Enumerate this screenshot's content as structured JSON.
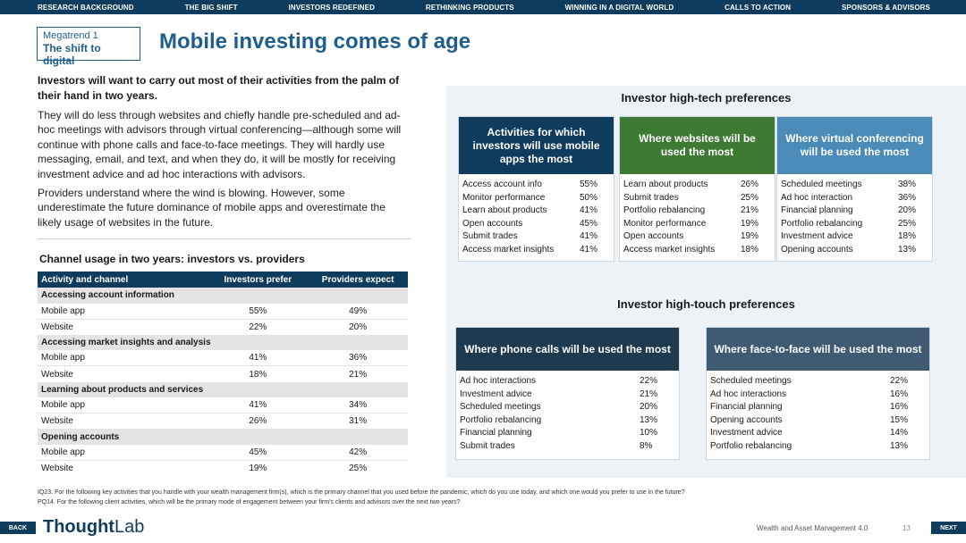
{
  "nav": [
    "RESEARCH BACKGROUND",
    "THE BIG SHIFT",
    "INVESTORS REDEFINED",
    "RETHINKING PRODUCTS",
    "WINNING IN A DIGITAL WORLD",
    "CALLS TO ACTION",
    "SPONSORS & ADVISORS"
  ],
  "megatrend": {
    "label": "Megatrend 1",
    "name": "The shift to digital"
  },
  "title": "Mobile investing comes of age",
  "intro_bold": "Investors will want to carry out most of their activities from the palm of their hand in two years.",
  "paragraph1": "They will do less through websites and chiefly handle pre-scheduled and ad-hoc meetings with advisors through virtual conferencing—although some will continue with phone calls and face-to-face meetings. They will hardly use messaging, email, and text, and when they do, it will be mostly for receiving investment advice and ad hoc interactions with advisors.",
  "paragraph2": "Providers understand where the wind is blowing. However, some underestimate the future dominance of mobile apps and overestimate the likely usage of websites in the future.",
  "channel_table": {
    "title": "Channel usage in two years: investors vs. providers",
    "headers": [
      "Activity and channel",
      "Investors prefer",
      "Providers expect"
    ],
    "sections": [
      {
        "name": "Accessing account information",
        "rows": [
          [
            "Mobile app",
            "55%",
            "49%"
          ],
          [
            "Website",
            "22%",
            "20%"
          ]
        ]
      },
      {
        "name": "Accessing market insights and analysis",
        "rows": [
          [
            "Mobile app",
            "41%",
            "36%"
          ],
          [
            "Website",
            "18%",
            "21%"
          ]
        ]
      },
      {
        "name": "Learning about products and services",
        "rows": [
          [
            "Mobile app",
            "41%",
            "34%"
          ],
          [
            "Website",
            "26%",
            "31%"
          ]
        ]
      },
      {
        "name": "Opening accounts",
        "rows": [
          [
            "Mobile app",
            "45%",
            "42%"
          ],
          [
            "Website",
            "19%",
            "25%"
          ]
        ]
      }
    ]
  },
  "high_tech": {
    "title": "Investor high-tech preferences",
    "cards": [
      {
        "heading": "Activities for which investors will use mobile apps the most",
        "color": "#0f3c5c",
        "items": [
          [
            "Access account info",
            "55%"
          ],
          [
            "Monitor performance",
            "50%"
          ],
          [
            "Learn about products",
            "41%"
          ],
          [
            "Open accounts",
            "45%"
          ],
          [
            "Submit trades",
            "41%"
          ],
          [
            "Access market insights",
            "41%"
          ]
        ]
      },
      {
        "heading": "Where websites will be used the most",
        "color": "#3e7a33",
        "items": [
          [
            "Learn about products",
            "26%"
          ],
          [
            "Submit trades",
            "25%"
          ],
          [
            "Portfolio rebalancing",
            "21%"
          ],
          [
            "Monitor performance",
            "19%"
          ],
          [
            "Open accounts",
            "19%"
          ],
          [
            "Access market insights",
            "18%"
          ]
        ]
      },
      {
        "heading": "Where virtual conferencing will be used the most",
        "color": "#4a8bb7",
        "items": [
          [
            "Scheduled meetings",
            "38%"
          ],
          [
            "Ad hoc interaction",
            "36%"
          ],
          [
            "Financial planning",
            "20%"
          ],
          [
            "Portfolio rebalancing",
            "25%"
          ],
          [
            "Investment advice",
            "18%"
          ],
          [
            "Opening accounts",
            "13%"
          ]
        ]
      }
    ]
  },
  "high_touch": {
    "title": "Investor high-touch preferences",
    "cards": [
      {
        "heading": "Where phone calls will be used the most",
        "color": "#1f3a4e",
        "items": [
          [
            "Ad hoc interactions",
            "22%"
          ],
          [
            "Investment advice",
            "21%"
          ],
          [
            "Scheduled meetings",
            "20%"
          ],
          [
            "Portfolio rebalancing",
            "13%"
          ],
          [
            "Financial planning",
            "10%"
          ],
          [
            "Submit trades",
            "8%"
          ]
        ]
      },
      {
        "heading": "Where face-to-face will be used the most",
        "color": "#3f5a72",
        "items": [
          [
            "Scheduled meetings",
            "22%"
          ],
          [
            "Ad hoc interactions",
            "16%"
          ],
          [
            "Financial planning",
            "16%"
          ],
          [
            "Opening accounts",
            "15%"
          ],
          [
            "Investment advice",
            "14%"
          ],
          [
            "Portfolio rebalancing",
            "13%"
          ]
        ]
      }
    ]
  },
  "footnotes": [
    "IQ23. For the following key activities that you handle with your wealth management firm(s), which is the primary channel that you used before the pandemic, which do you use today, and which one would you prefer to use in the future?",
    "PQ14. For the following client activities, which will be the primary mode of engagement between your firm's clients and advisors over the next two years?"
  ],
  "footer": {
    "back": "BACK",
    "next": "NEXT",
    "logo_bold": "Thought",
    "logo_light": "Lab",
    "report": "Wealth and Asset Management 4.0",
    "page": "13"
  }
}
